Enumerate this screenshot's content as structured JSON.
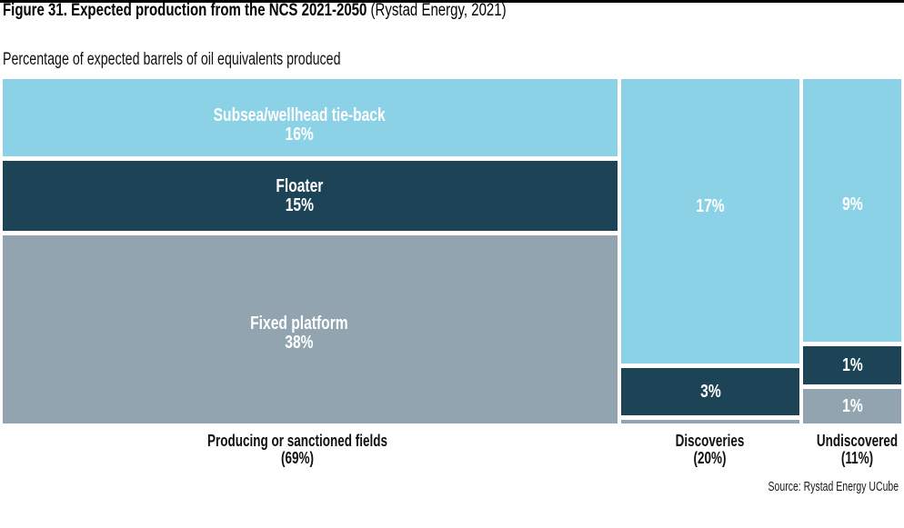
{
  "page": {
    "title_bold": "Figure 31. Expected production from the NCS 2021-2050",
    "title_note": "(Rystad Energy, 2021)",
    "subtitle": "Percentage of expected barrels of oil equivalents produced",
    "source": "Source: Rystad Energy UCube"
  },
  "chart_data": {
    "type": "marimekko",
    "title": "Figure 31. Expected production from the NCS 2021-2050 (Rystad Energy, 2021)",
    "subtitle": "Percentage of expected barrels of oil equivalents produced",
    "categories": [
      "Producing or sanctioned fields",
      "Discoveries",
      "Undiscovered"
    ],
    "category_totals_pct": [
      69,
      20,
      11
    ],
    "series": [
      {
        "name": "Subsea/wellhead tie-back",
        "color": "#8cd2e6",
        "values_pct": [
          16,
          17,
          9
        ]
      },
      {
        "name": "Floater",
        "color": "#1d4456",
        "values_pct": [
          15,
          3,
          1
        ]
      },
      {
        "name": "Fixed platform",
        "color": "#91a4af",
        "values_pct": [
          38,
          0,
          1
        ]
      }
    ],
    "source": "Source: Rystad Energy UCube"
  },
  "columns": [
    {
      "footer_line1": "Producing or sanctioned fields",
      "footer_line2": "(69%)",
      "blocks": [
        {
          "label": "Subsea/wellhead tie-back",
          "value": "16%"
        },
        {
          "label": "Floater",
          "value": "15%"
        },
        {
          "label": "Fixed platform",
          "value": "38%"
        }
      ]
    },
    {
      "footer_line1": "Discoveries",
      "footer_line2": "(20%)",
      "blocks": [
        {
          "value": "17%"
        },
        {
          "value": "3%"
        },
        {
          "value": ""
        }
      ]
    },
    {
      "footer_line1": "Undiscovered",
      "footer_line2": "(11%)",
      "blocks": [
        {
          "value": "9%"
        },
        {
          "value": "1%"
        },
        {
          "value": "1%"
        }
      ]
    }
  ]
}
